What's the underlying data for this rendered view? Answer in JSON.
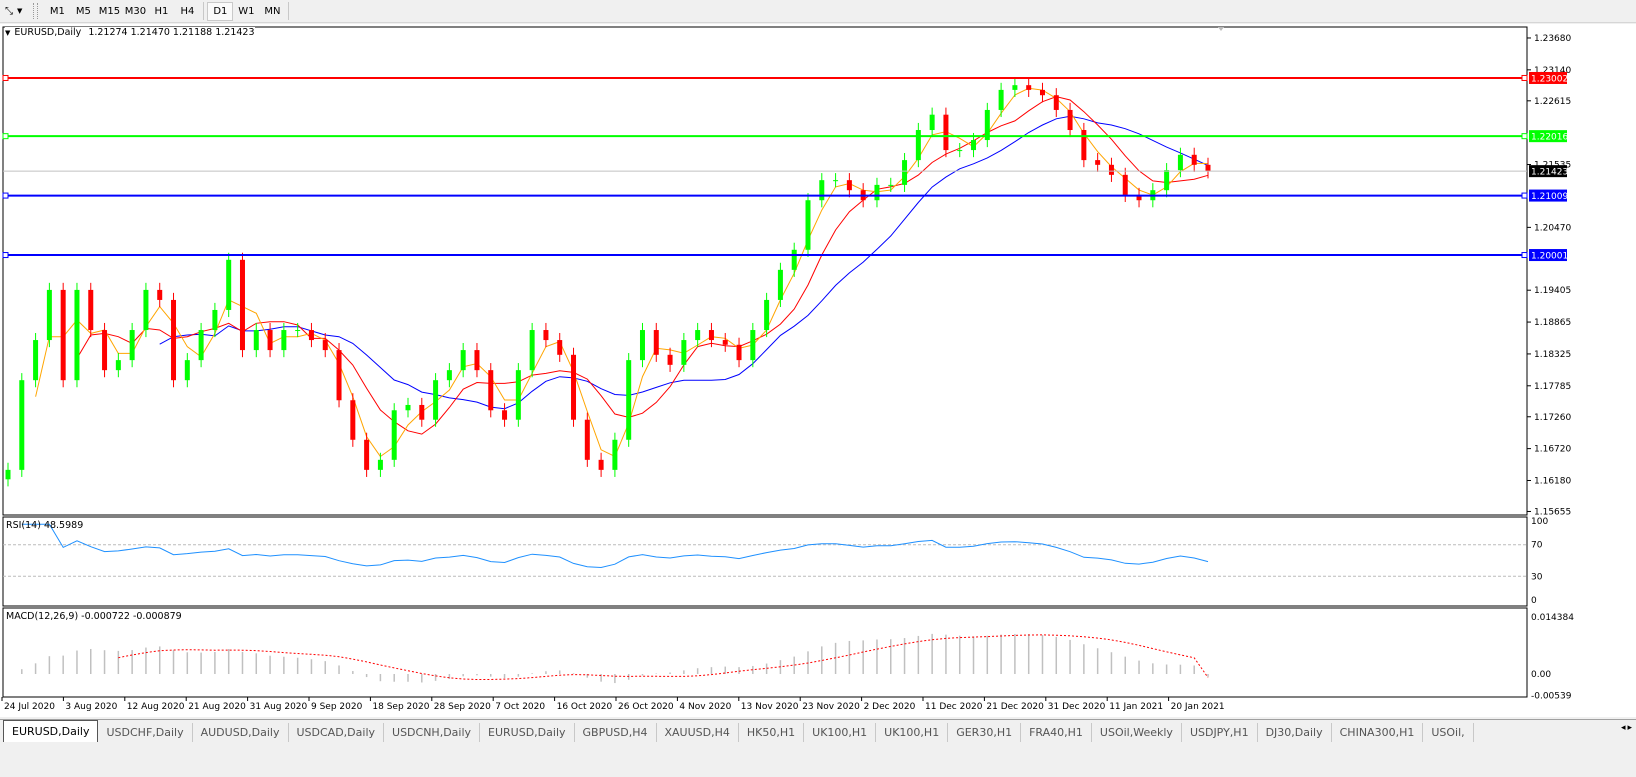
{
  "toolbar": {
    "tool_icon": "line-tool-icon",
    "timeframes": [
      "M1",
      "M5",
      "M15",
      "M30",
      "H1",
      "H4",
      "D1",
      "W1",
      "MN"
    ],
    "active_timeframe": "D1"
  },
  "chart": {
    "symbol": "EURUSD,Daily",
    "ohlc_readout": "1.21274 1.21470 1.21188 1.21423",
    "rsi_label": "RSI(14) 48.5989",
    "macd_label": "MACD(12,26,9) -0.000722 -0.000879",
    "colors": {
      "bull": "#00ff00",
      "bear": "#ff0000",
      "ma_fast": "#ffa500",
      "ma_mid": "#ff0000",
      "ma_slow": "#0000ff",
      "rsi": "#1e90ff",
      "macd_hist": "#c0c0c0",
      "macd_signal": "#ff0000"
    }
  },
  "chart_data": {
    "type": "candlestick",
    "symbol": "EURUSD",
    "timeframe": "Daily",
    "first_open": 1.162,
    "close": [
      1.1636,
      1.1788,
      1.1856,
      1.1941,
      1.1788,
      1.1941,
      1.1873,
      1.1805,
      1.1822,
      1.1873,
      1.1941,
      1.1924,
      1.1788,
      1.1822,
      1.1873,
      1.1907,
      1.1992,
      1.1839,
      1.1873,
      1.1839,
      1.1873,
      1.1873,
      1.1856,
      1.1839,
      1.1754,
      1.1687,
      1.1636,
      1.1653,
      1.1737,
      1.1746,
      1.1721,
      1.1788,
      1.1805,
      1.1839,
      1.1805,
      1.1737,
      1.1721,
      1.1805,
      1.1873,
      1.1856,
      1.1831,
      1.1721,
      1.1653,
      1.1636,
      1.1687,
      1.1822,
      1.1873,
      1.1831,
      1.1814,
      1.1856,
      1.1873,
      1.1856,
      1.1848,
      1.1822,
      1.1873,
      1.1924,
      1.1975,
      1.2009,
      1.2093,
      1.2127,
      1.2127,
      1.211,
      1.2093,
      1.2119,
      1.2119,
      1.2161,
      1.2212,
      1.2238,
      1.2178,
      1.2178,
      1.2195,
      1.2246,
      1.228,
      1.2288,
      1.228,
      1.2271,
      1.2246,
      1.2212,
      1.2161,
      1.2153,
      1.2136,
      1.2102,
      1.2093,
      1.211,
      1.2144,
      1.217,
      1.2153,
      1.2142
    ],
    "ylim": [
      1.15595,
      1.23866
    ],
    "price_ticks": [
      "1.23680",
      "1.23140",
      "1.22615",
      "1.21535",
      "1.20470",
      "1.19405",
      "1.18865",
      "1.18325",
      "1.17785",
      "1.17260",
      "1.16720",
      "1.16180",
      "1.15655"
    ],
    "price_tick_values": [
      1.2368,
      1.2314,
      1.22615,
      1.21535,
      1.2047,
      1.19405,
      1.18865,
      1.18325,
      1.17785,
      1.1726,
      1.1672,
      1.1618,
      1.15655
    ],
    "horizontal_lines": [
      {
        "price": 1.23002,
        "label": "1.23002",
        "color": "#ff0000"
      },
      {
        "price": 1.22016,
        "label": "1.22016",
        "color": "#00ff00"
      },
      {
        "price": 1.21009,
        "label": "1.21009",
        "color": "#0000ff"
      },
      {
        "price": 1.20001,
        "label": "1.20001",
        "color": "#0000ff"
      }
    ],
    "current_price": {
      "price": 1.21423,
      "label": "1.21423"
    },
    "date_labels": [
      "24 Jul 2020",
      "3 Aug 2020",
      "12 Aug 2020",
      "21 Aug 2020",
      "31 Aug 2020",
      "9 Sep 2020",
      "18 Sep 2020",
      "28 Sep 2020",
      "7 Oct 2020",
      "16 Oct 2020",
      "26 Oct 2020",
      "4 Nov 2020",
      "13 Nov 2020",
      "23 Nov 2020",
      "2 Dec 2020",
      "11 Dec 2020",
      "21 Dec 2020",
      "31 Dec 2020",
      "11 Jan 2021",
      "20 Jan 2021"
    ],
    "moving_averages": [
      5,
      10,
      20
    ],
    "rsi": {
      "period": 14,
      "value": 48.5989,
      "levels": [
        70,
        30
      ],
      "ticks": [
        "100",
        "70",
        "30",
        "0"
      ],
      "ylim": [
        0,
        100
      ]
    },
    "macd": {
      "fast": 12,
      "slow": 26,
      "signal": 9,
      "main": -0.000722,
      "signal_value": -0.000879,
      "ticks": [
        "0.014384",
        "0.00",
        "-0.00539"
      ],
      "tick_values": [
        0.014384,
        0,
        -0.00539
      ]
    }
  },
  "tabs": [
    "EURUSD,Daily",
    "USDCHF,Daily",
    "AUDUSD,Daily",
    "USDCAD,Daily",
    "USDCNH,Daily",
    "EURUSD,Daily",
    "GBPUSD,H4",
    "XAUUSD,H4",
    "HK50,H1",
    "UK100,H1",
    "UK100,H1",
    "GER30,H1",
    "FRA40,H1",
    "USOil,Weekly",
    "USDJPY,H1",
    "DJ30,Daily",
    "CHINA300,H1",
    "USOil,"
  ],
  "active_tab": 0
}
